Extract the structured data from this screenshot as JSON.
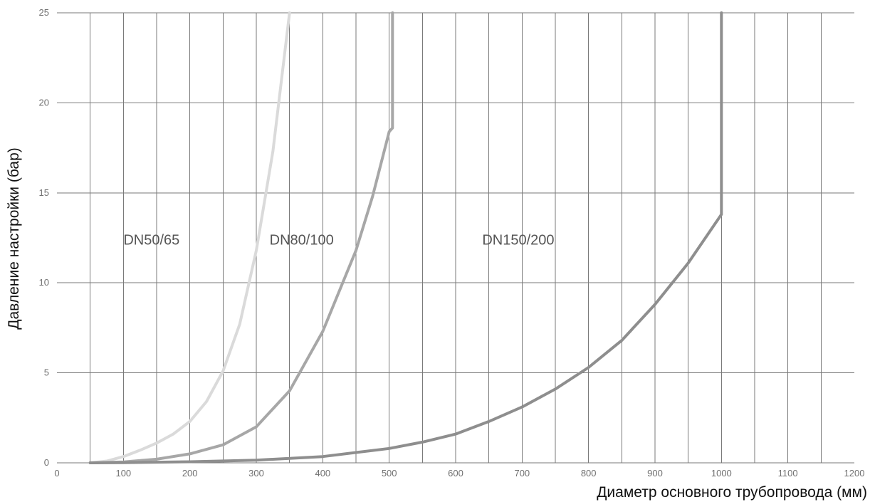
{
  "chart_data": {
    "type": "line",
    "title": "",
    "xlabel": "Диаметр основного трубопровода (мм)",
    "ylabel": "Давление настройки (бар)",
    "xlim": [
      0,
      1200
    ],
    "ylim": [
      0,
      25
    ],
    "x_ticks": [
      "0",
      "100",
      "200",
      "300",
      "400",
      "500",
      "600",
      "700",
      "800",
      "900",
      "1000",
      "1100",
      "1200"
    ],
    "y_ticks": [
      "0",
      "5",
      "10",
      "15",
      "20",
      "25"
    ],
    "grid": {
      "vertical_step": 50,
      "horizontal_step": 5
    },
    "series": [
      {
        "name": "DN50/65",
        "color": "#dadada",
        "label_at": [
          100,
          12.4
        ],
        "x": [
          50,
          75,
          100,
          125,
          150,
          175,
          200,
          225,
          250,
          275,
          300,
          325,
          350
        ],
        "y": [
          0,
          0.1,
          0.35,
          0.7,
          1.1,
          1.6,
          2.3,
          3.4,
          5.1,
          7.7,
          11.8,
          17.3,
          25
        ]
      },
      {
        "name": "DN80/100",
        "color": "#a7a7a7",
        "label_at": [
          320,
          12.4
        ],
        "x": [
          50,
          100,
          150,
          200,
          250,
          300,
          350,
          400,
          450,
          475,
          500,
          505,
          505
        ],
        "y": [
          0,
          0.05,
          0.2,
          0.5,
          1.0,
          2.0,
          4.0,
          7.3,
          11.8,
          14.8,
          18.4,
          18.6,
          25
        ]
      },
      {
        "name": "DN150/200",
        "color": "#8e8e8e",
        "label_at": [
          640,
          12.4
        ],
        "x": [
          50,
          100,
          200,
          300,
          400,
          500,
          550,
          600,
          650,
          700,
          750,
          800,
          850,
          900,
          950,
          1000,
          1000
        ],
        "y": [
          0,
          0.01,
          0.06,
          0.15,
          0.35,
          0.8,
          1.15,
          1.6,
          2.3,
          3.1,
          4.1,
          5.3,
          6.8,
          8.8,
          11.1,
          13.8,
          25
        ]
      }
    ]
  }
}
